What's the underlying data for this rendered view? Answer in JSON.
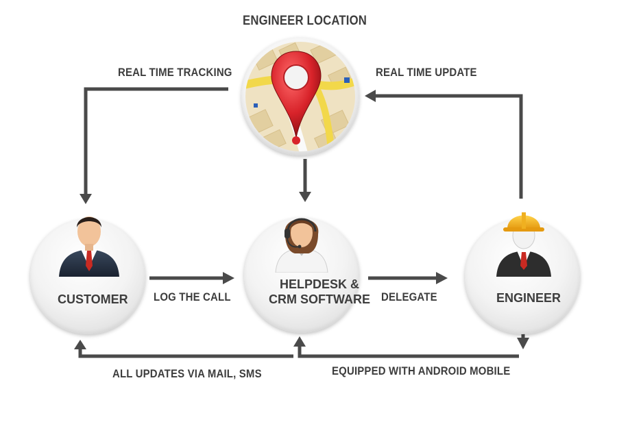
{
  "title": "ENGINEER LOCATION",
  "nodes": {
    "customer": "CUSTOMER",
    "helpdesk_line1": "HELPDESK &",
    "helpdesk_line2": "CRM SOFTWARE",
    "engineer": "ENGINEER"
  },
  "flows": {
    "real_time_tracking": "REAL TIME TRACKING",
    "real_time_update": "REAL TIME UPDATE",
    "log_the_call": "LOG THE CALL",
    "delegate": "DELEGATE",
    "all_updates": "ALL UPDATES VIA MAIL, SMS",
    "equipped": "EQUIPPED WITH ANDROID MOBILE"
  },
  "colors": {
    "arrow": "#4a4a4a",
    "text": "#3d3d3d",
    "pin_red": "#d8232a",
    "map_road": "#f2d84a"
  }
}
